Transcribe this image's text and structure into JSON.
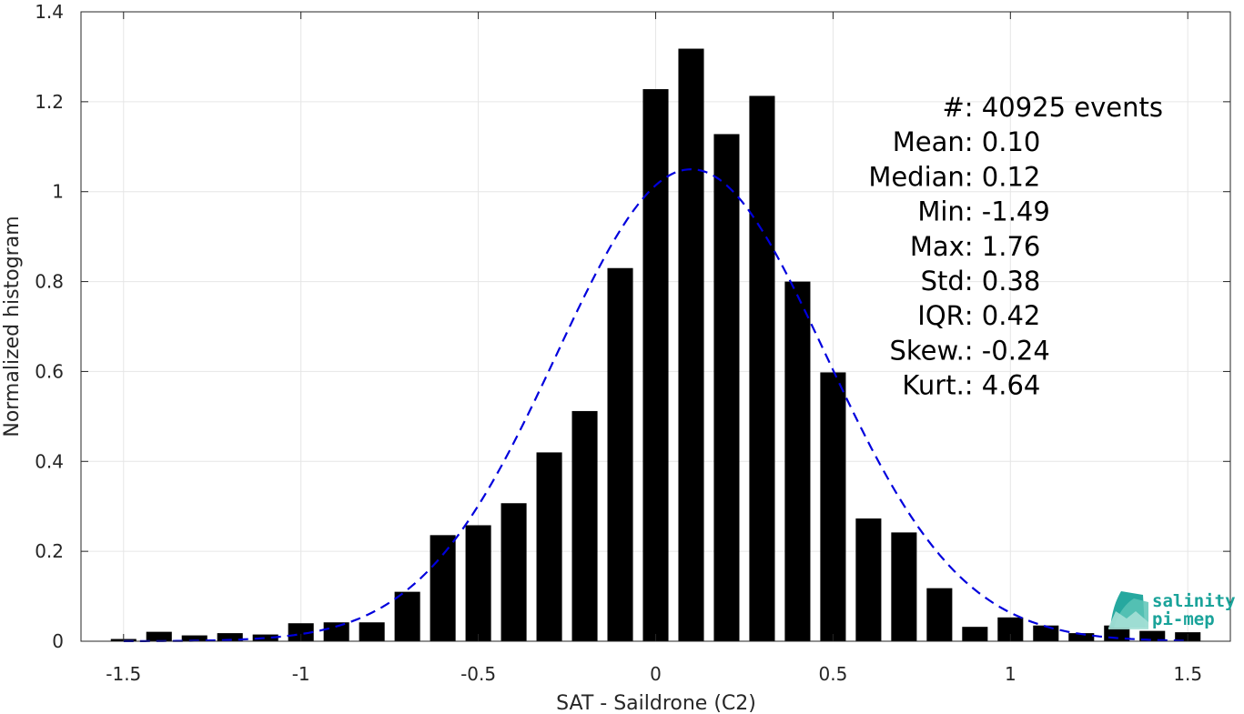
{
  "chart_data": {
    "type": "bar",
    "xlabel": "SAT - Saildrone (C2)",
    "ylabel": "Normalized histogram",
    "xlim": [
      -1.62,
      1.62
    ],
    "ylim": [
      0,
      1.4
    ],
    "grid": true,
    "x_ticks": [
      -1.5,
      -1,
      -0.5,
      0,
      0.5,
      1,
      1.5
    ],
    "x_tick_labels": [
      "-1.5",
      "-1",
      "-0.5",
      "0",
      "0.5",
      "1",
      "1.5"
    ],
    "y_ticks": [
      0,
      0.2,
      0.4,
      0.6,
      0.8,
      1,
      1.2,
      1.4
    ],
    "y_tick_labels": [
      "0",
      "0.2",
      "0.4",
      "0.6",
      "0.8",
      "1",
      "1.2",
      "1.4"
    ],
    "bin_width": 0.1,
    "bar_color": "#000000",
    "x": [
      -1.5,
      -1.4,
      -1.3,
      -1.2,
      -1.1,
      -1.0,
      -0.9,
      -0.8,
      -0.7,
      -0.6,
      -0.5,
      -0.4,
      -0.3,
      -0.2,
      -0.1,
      0.0,
      0.1,
      0.2,
      0.3,
      0.4,
      0.5,
      0.6,
      0.7,
      0.8,
      0.9,
      1.0,
      1.1,
      1.2,
      1.3,
      1.4,
      1.5
    ],
    "values": [
      0.005,
      0.021,
      0.013,
      0.018,
      0.015,
      0.04,
      0.042,
      0.042,
      0.11,
      0.236,
      0.258,
      0.307,
      0.42,
      0.512,
      0.83,
      1.228,
      1.318,
      1.128,
      1.213,
      0.8,
      0.598,
      0.273,
      0.242,
      0.118,
      0.032,
      0.053,
      0.035,
      0.018,
      0.035,
      0.023,
      0.02
    ],
    "fit_curve": {
      "type": "normal",
      "mean": 0.1,
      "std": 0.38,
      "color": "#0000dd",
      "style": "dashed"
    },
    "stats": [
      {
        "label": "#  ",
        "value": ": 40925 events"
      },
      {
        "label": "Mean ",
        "value": ": 0.10"
      },
      {
        "label": "Median ",
        "value": ": 0.12"
      },
      {
        "label": "Min ",
        "value": ": -1.49"
      },
      {
        "label": "Max ",
        "value": ": 1.76"
      },
      {
        "label": "Std ",
        "value": ": 0.38"
      },
      {
        "label": "IQR ",
        "value": ": 0.42"
      },
      {
        "label": "Skew. ",
        "value": ": -0.24"
      },
      {
        "label": "Kurt. ",
        "value": ": 4.64"
      }
    ]
  },
  "logo": {
    "line1": "salinity",
    "line2": "pi-mep",
    "color": "#1aa39a"
  }
}
